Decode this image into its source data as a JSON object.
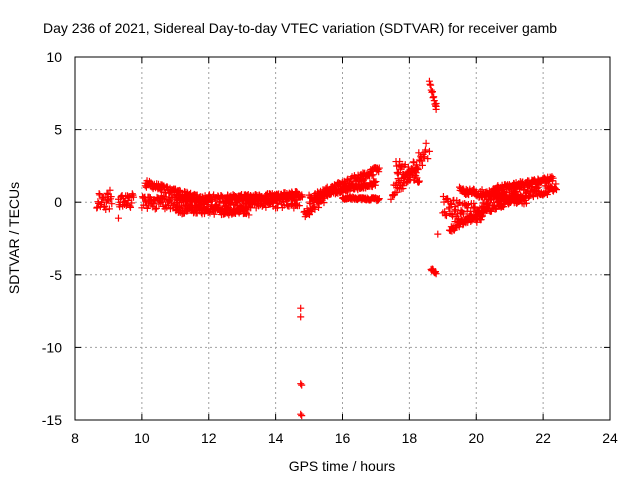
{
  "chart_data": {
    "type": "scatter",
    "title": "Day 236 of 2021, Sidereal Day-to-day VTEC variation (SDTVAR) for receiver gamb",
    "xlabel": "GPS time / hours",
    "ylabel": "SDTVAR / TECUs",
    "xlim": [
      8,
      24
    ],
    "ylim": [
      -15,
      10
    ],
    "xticks": [
      8,
      10,
      12,
      14,
      16,
      18,
      20,
      22,
      24
    ],
    "yticks": [
      -15,
      -10,
      -5,
      0,
      5,
      10
    ],
    "grid": true,
    "marker": "+",
    "color": "#ff0000",
    "series": [
      {
        "name": "gamb",
        "segments": [
          {
            "x0": 8.65,
            "x1": 9.1,
            "y0": 0.3,
            "y1": 0.1,
            "spread": 1.4
          },
          {
            "x0": 9.3,
            "x1": 9.75,
            "y0": 0.0,
            "y1": 0.1,
            "spread": 1.0
          },
          {
            "x0": 10.0,
            "x1": 14.8,
            "y0": 0.0,
            "y1": 0.1,
            "spread": 1.0
          },
          {
            "x0": 10.1,
            "x1": 12.0,
            "y0": 1.3,
            "y1": 0.0,
            "spread": 0.5
          },
          {
            "x0": 11.0,
            "x1": 13.2,
            "y0": -0.5,
            "y1": -0.6,
            "spread": 0.6
          },
          {
            "x0": 12.5,
            "x1": 14.7,
            "y0": 0.2,
            "y1": 0.5,
            "spread": 0.5
          },
          {
            "x0": 14.85,
            "x1": 15.5,
            "y0": -0.8,
            "y1": 0.4,
            "spread": 0.9
          },
          {
            "x0": 15.0,
            "x1": 17.1,
            "y0": 0.2,
            "y1": 2.3,
            "spread": 0.6
          },
          {
            "x0": 15.5,
            "x1": 17.0,
            "y0": 0.6,
            "y1": 1.3,
            "spread": 0.4
          },
          {
            "x0": 16.0,
            "x1": 17.1,
            "y0": 0.3,
            "y1": 0.2,
            "spread": 0.2
          },
          {
            "x0": 17.5,
            "x1": 18.5,
            "y0": 0.5,
            "y1": 3.5,
            "spread": 1.3
          },
          {
            "x0": 17.6,
            "x1": 18.3,
            "y0": 2.5,
            "y1": 1.5,
            "spread": 1.0
          },
          {
            "x0": 18.6,
            "x1": 18.8,
            "y0": 8.3,
            "y1": 6.5,
            "spread": 0.3
          },
          {
            "x0": 18.65,
            "x1": 18.8,
            "y0": -4.6,
            "y1": -4.9,
            "spread": 0.2
          },
          {
            "x0": 19.0,
            "x1": 20.2,
            "y0": -0.3,
            "y1": -0.8,
            "spread": 1.4
          },
          {
            "x0": 19.2,
            "x1": 21.2,
            "y0": -1.8,
            "y1": 0.4,
            "spread": 0.6
          },
          {
            "x0": 19.5,
            "x1": 21.5,
            "y0": 0.8,
            "y1": 0.1,
            "spread": 0.6
          },
          {
            "x0": 20.2,
            "x1": 22.4,
            "y0": 0.2,
            "y1": 1.0,
            "spread": 0.8
          },
          {
            "x0": 20.5,
            "x1": 22.3,
            "y0": 0.9,
            "y1": 1.6,
            "spread": 0.4
          }
        ],
        "points": [
          [
            9.3,
            -1.1
          ],
          [
            14.75,
            -7.3
          ],
          [
            14.75,
            -7.9
          ],
          [
            14.75,
            -12.5
          ],
          [
            14.78,
            -12.6
          ],
          [
            14.75,
            -14.6
          ],
          [
            14.78,
            -14.7
          ],
          [
            18.85,
            -2.2
          ],
          [
            17.45,
            0.2
          ],
          [
            17.5,
            0.5
          ],
          [
            18.8,
            6.6
          ],
          [
            18.8,
            6.8
          ],
          [
            18.55,
            3.0
          ],
          [
            18.6,
            3.5
          ]
        ]
      }
    ]
  }
}
